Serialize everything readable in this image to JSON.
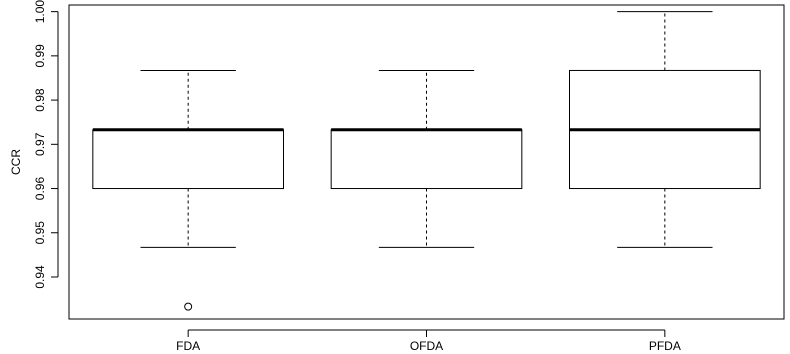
{
  "chart_data": {
    "type": "boxplot",
    "title": "",
    "xlabel": "",
    "ylabel": "CCR",
    "categories": [
      "FDA",
      "OFDA",
      "PFDA"
    ],
    "ylim": [
      0.9305,
      1.0015
    ],
    "yticks": [
      0.94,
      0.95,
      0.96,
      0.97,
      0.98,
      0.99,
      1.0
    ],
    "ytick_labels": [
      "0.94",
      "0.95",
      "0.96",
      "0.97",
      "0.98",
      "0.99",
      "1.00"
    ],
    "grid": false,
    "legend": "none",
    "boxes": [
      {
        "category": "FDA",
        "whisker_low": 0.9467,
        "q1": 0.96,
        "median": 0.9733,
        "q3": 0.9733,
        "whisker_high": 0.9867,
        "outliers": [
          0.9333
        ]
      },
      {
        "category": "OFDA",
        "whisker_low": 0.9467,
        "q1": 0.96,
        "median": 0.9733,
        "q3": 0.9733,
        "whisker_high": 0.9867,
        "outliers": []
      },
      {
        "category": "PFDA",
        "whisker_low": 0.9467,
        "q1": 0.96,
        "median": 0.9733,
        "q3": 0.9867,
        "whisker_high": 1.0,
        "outliers": []
      }
    ]
  }
}
